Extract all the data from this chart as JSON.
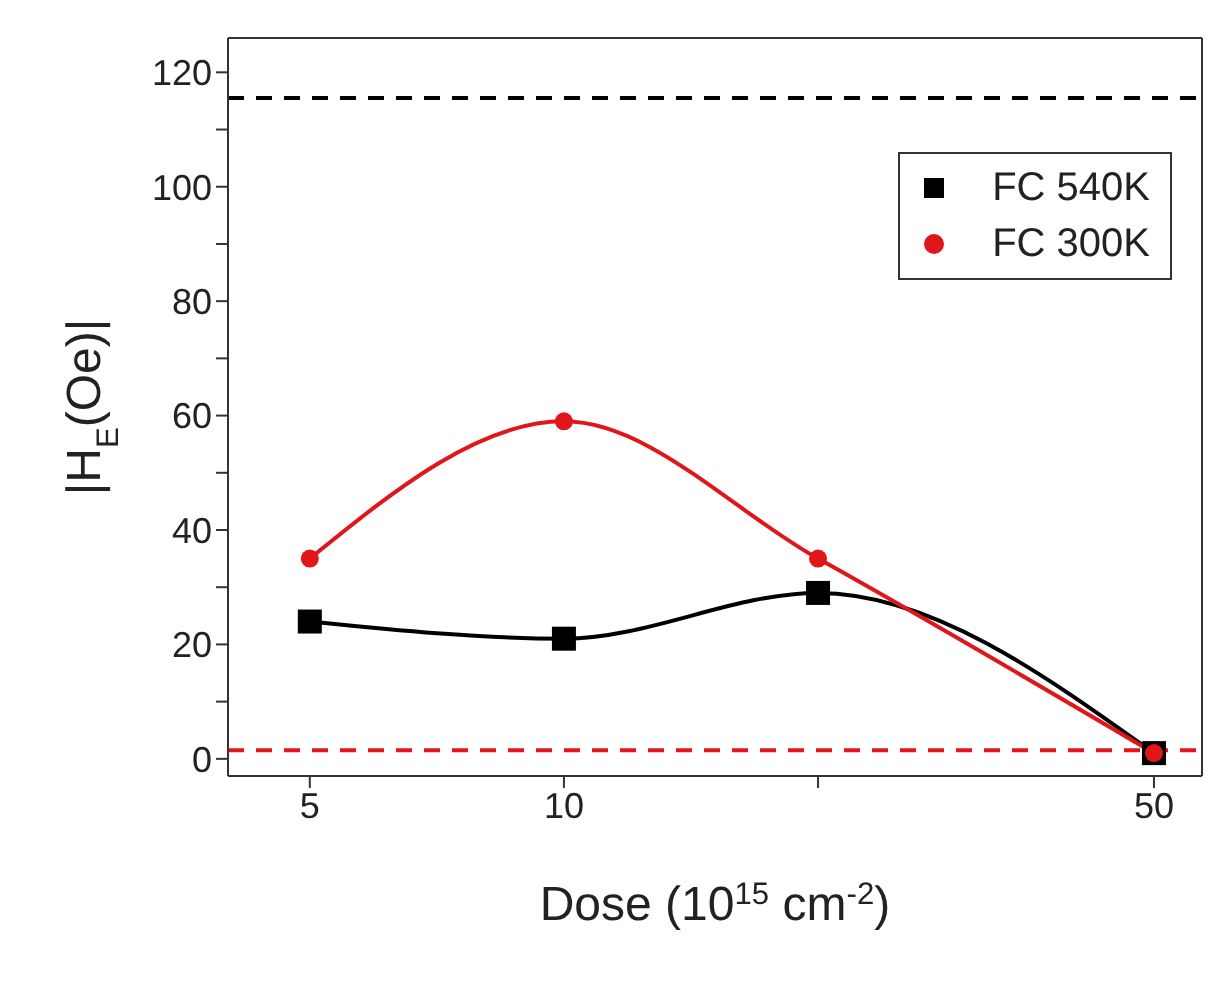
{
  "chart_data": {
    "type": "line",
    "xlabel": "Dose (10$^{15}$ cm$^{-2}$)",
    "ylabel": "|H$_{E}$(Oe)|",
    "log": "x",
    "x": [
      5,
      10,
      20,
      50
    ],
    "series": [
      {
        "name": "FC 540K",
        "color": "#000000",
        "values": [
          24,
          21,
          29,
          1
        ],
        "marker": "square"
      },
      {
        "name": "FC 300K",
        "color": "#e0161b",
        "values": [
          35,
          59,
          35,
          1
        ],
        "marker": "circle"
      }
    ],
    "xlim": [
      4,
      57
    ],
    "xticks": [
      5,
      10,
      {
        "value": 20,
        "label": null
      },
      50
    ],
    "ylim": [
      -3,
      126
    ],
    "yticks": [
      0,
      {
        "value": 10,
        "label": null
      },
      20,
      {
        "value": 30,
        "label": null
      },
      40,
      {
        "value": 50,
        "label": null
      },
      60,
      {
        "value": 70,
        "label": null
      },
      80,
      {
        "value": 90,
        "label": null
      },
      100,
      {
        "value": 110,
        "label": null
      },
      120
    ],
    "ref_lines": [
      {
        "axis": "y",
        "value": 115.5,
        "color": "#000000",
        "line_style": "dashed"
      },
      {
        "axis": "y",
        "value": 1.5,
        "color": "#e0161b",
        "line_style": "dashed"
      }
    ],
    "legend": "top right",
    "grid": false,
    "line_style": "solid"
  }
}
